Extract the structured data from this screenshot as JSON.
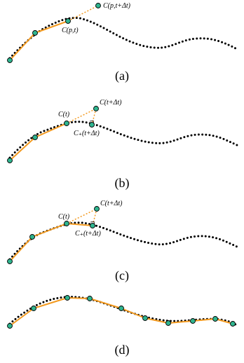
{
  "panels": [
    {
      "caption": "(a)",
      "labels": {
        "predicted": "C(p,t+Δt)",
        "current": "C(p,t)"
      }
    },
    {
      "caption": "(b)",
      "labels": {
        "predicted": "C(t+Δt)",
        "current": "C(t)",
        "corrected": "C₊(t+Δt)"
      }
    },
    {
      "caption": "(c)",
      "labels": {
        "predicted": "C(t+Δt)",
        "current": "C(t)",
        "corrected": "C₊(t+Δt)"
      }
    },
    {
      "caption": "(d)"
    }
  ],
  "colors": {
    "trace": "#f39a1f",
    "node": "#2fb58f",
    "curve": "#000000"
  }
}
